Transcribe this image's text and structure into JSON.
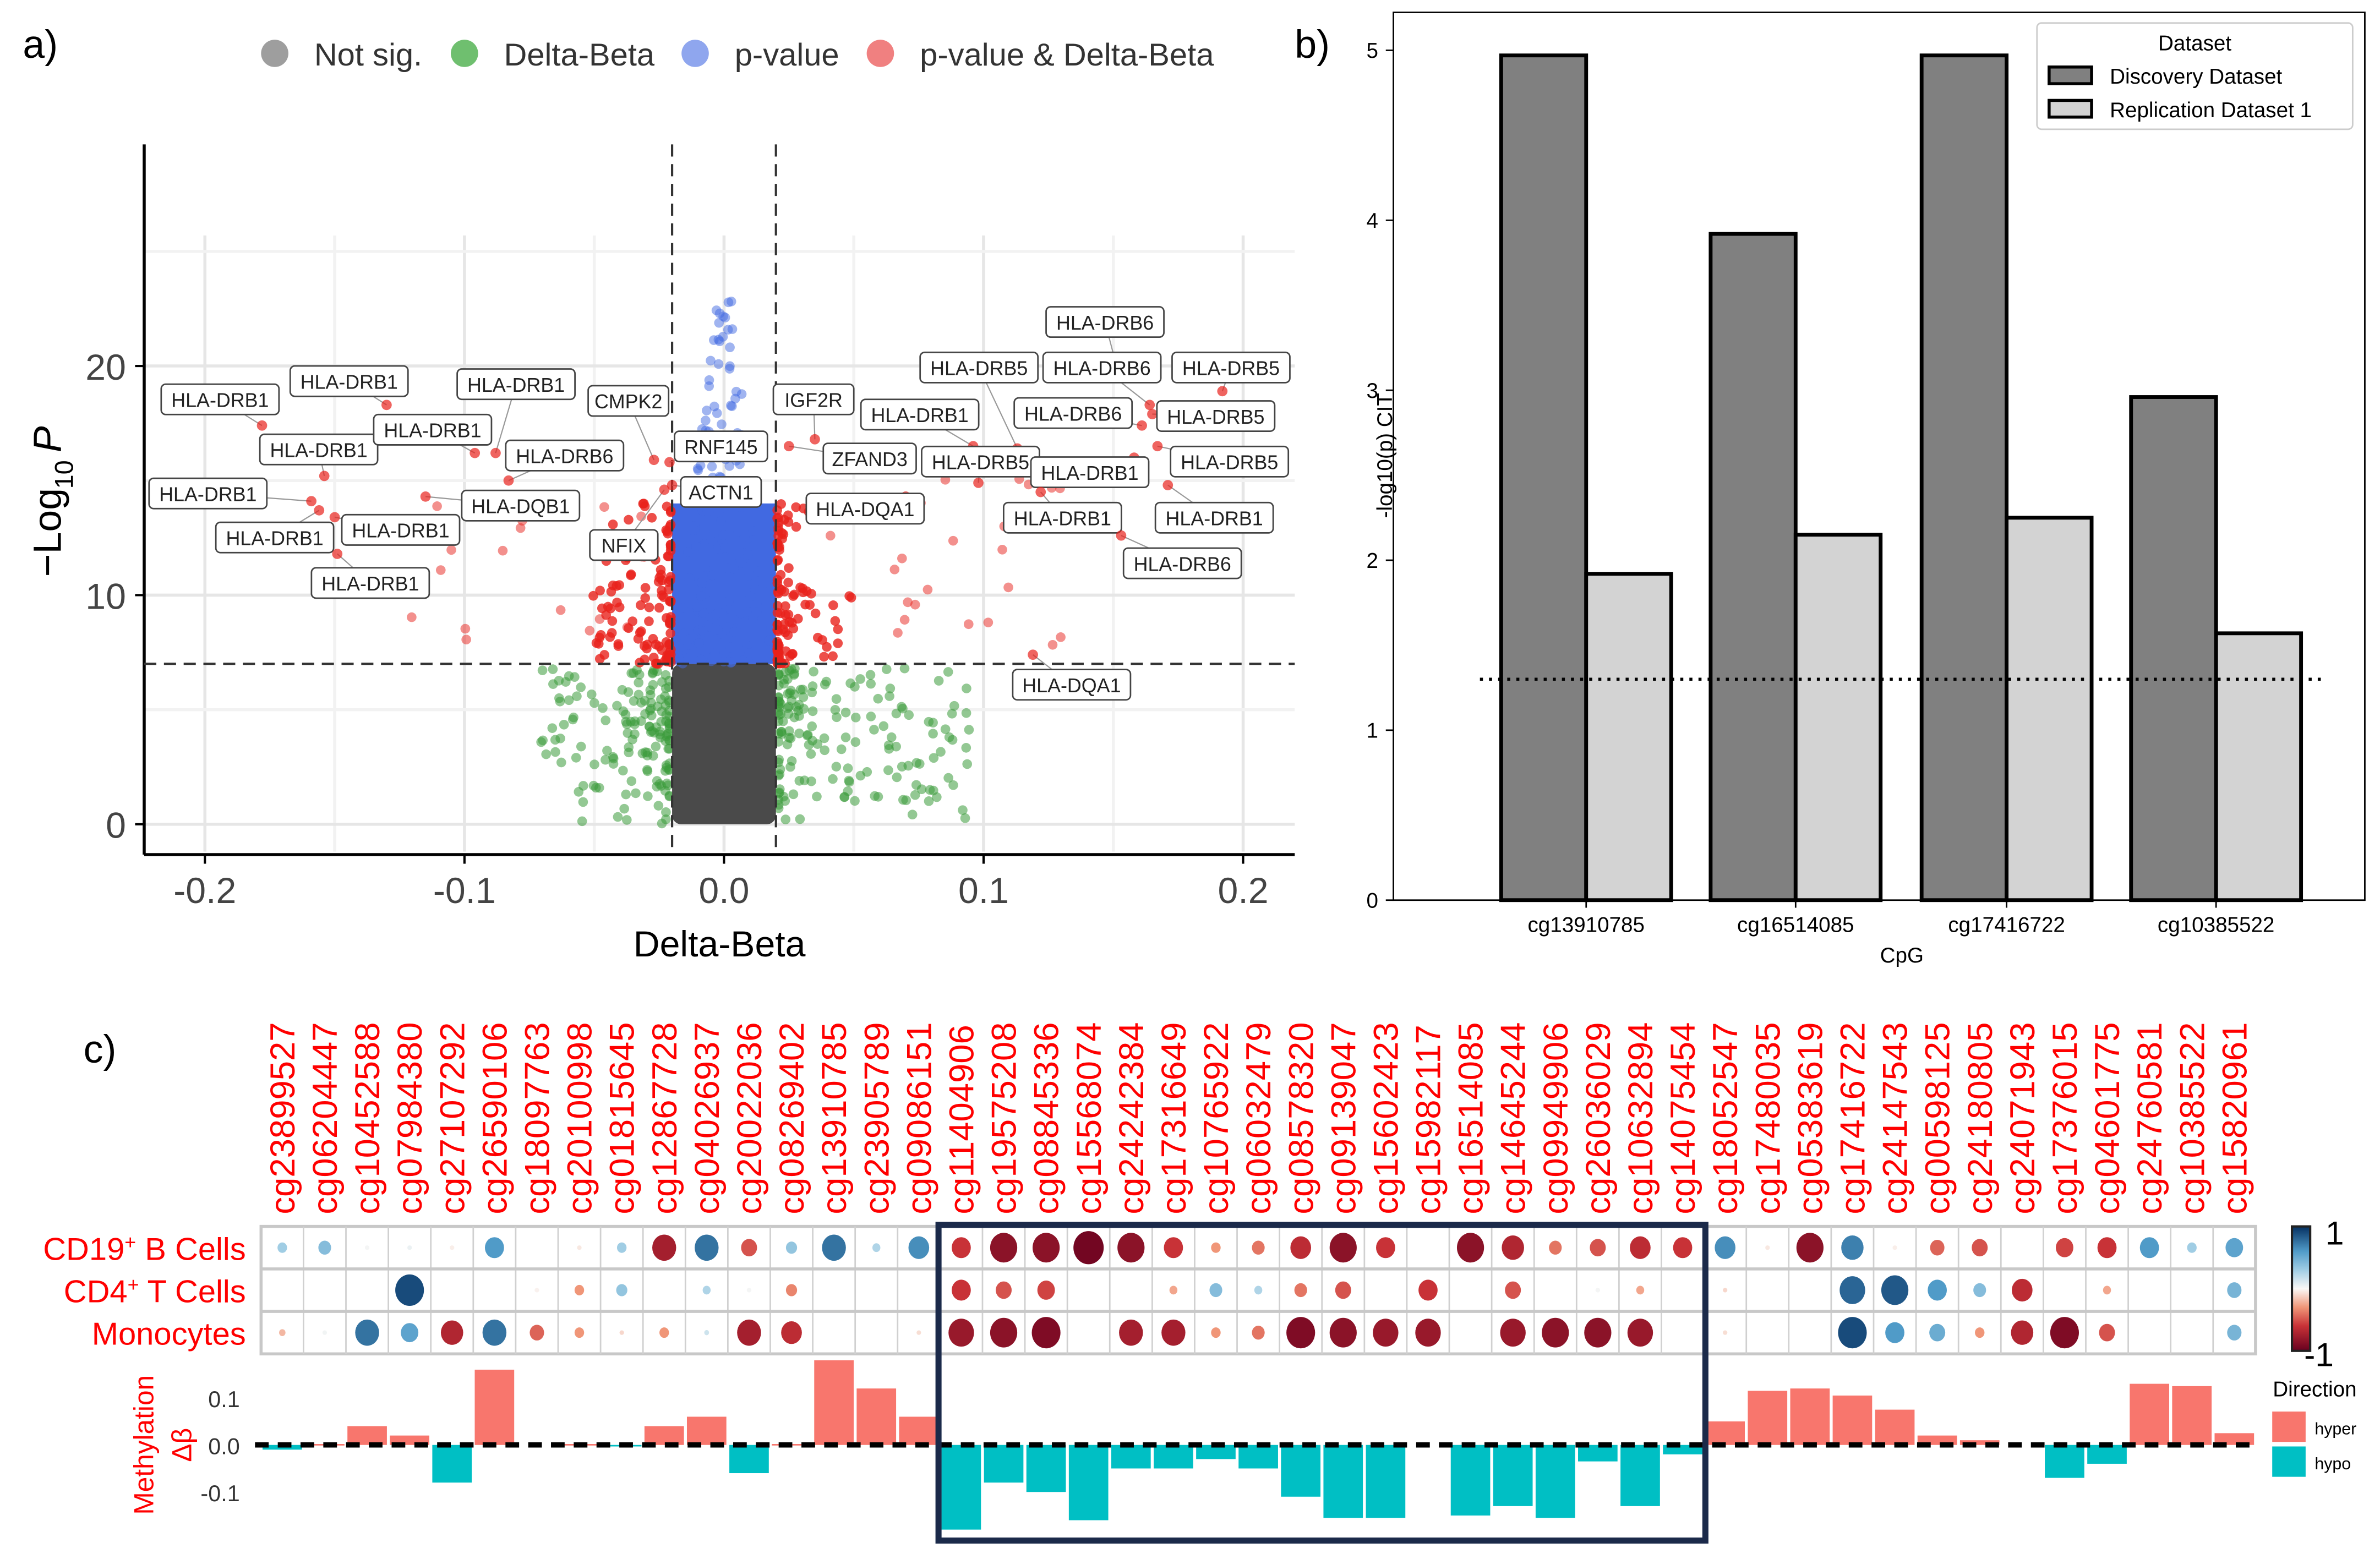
{
  "panel_labels": {
    "a": "a)",
    "b": "b)",
    "c": "c)"
  },
  "colors": {
    "not_sig": "#9e9e9e",
    "delta_beta": "#3a9a3a",
    "p_value": "#4169e1",
    "both": "#e8221c",
    "discovery": "#808080",
    "replication": "#d3d3d3",
    "hyper": "#f8766d",
    "hypo": "#00bfc4",
    "box": "#1b2a4a"
  },
  "chart_data": [
    {
      "type": "scatter",
      "name": "volcano",
      "xlabel": "Delta-Beta",
      "ylabel": "−Log",
      "ylabel_sub": "10",
      "ylabel_tail": "P",
      "xlim": [
        -0.22,
        0.22
      ],
      "ylim": [
        -1.3,
        29.5
      ],
      "xticks": [
        -0.2,
        -0.1,
        0.0,
        0.1,
        0.2
      ],
      "xtick_labels": [
        "-0.2",
        "-0.1",
        "0.0",
        "0.1",
        "0.2"
      ],
      "yticks": [
        0,
        10,
        20
      ],
      "ytick_labels": [
        "0",
        "10",
        "20"
      ],
      "thresholds": {
        "delta_beta": 0.02,
        "neg_log10_p": 7
      },
      "legend": [
        "Not sig.",
        "Delta-Beta",
        "p-value",
        "p-value & Delta-Beta"
      ],
      "legend_position": "top",
      "labeled_points": [
        {
          "gene": "HLA-DRB1",
          "x": -0.178,
          "y": 17.4
        },
        {
          "gene": "HLA-DRB1",
          "x": -0.13,
          "y": 18.3
        },
        {
          "gene": "HLA-DRB1",
          "x": -0.154,
          "y": 15.2
        },
        {
          "gene": "HLA-DRB1",
          "x": -0.096,
          "y": 16.2
        },
        {
          "gene": "HLA-DRB1",
          "x": -0.088,
          "y": 16.2
        },
        {
          "gene": "CMPK2",
          "x": -0.027,
          "y": 15.9
        },
        {
          "gene": "HLA-DRB6",
          "x": -0.083,
          "y": 15.0
        },
        {
          "gene": "HLA-DRB1",
          "x": -0.159,
          "y": 14.1
        },
        {
          "gene": "HLA-DQB1",
          "x": -0.115,
          "y": 14.3
        },
        {
          "gene": "HLA-DRB1",
          "x": -0.156,
          "y": 13.7
        },
        {
          "gene": "HLA-DRB1",
          "x": -0.15,
          "y": 13.4
        },
        {
          "gene": "HLA-DRB1",
          "x": -0.149,
          "y": 11.8
        },
        {
          "gene": "NFIX",
          "x": -0.023,
          "y": 14.6
        },
        {
          "gene": "RNF145",
          "x": -0.021,
          "y": 15.8
        },
        {
          "gene": "ACTN1",
          "x": -0.02,
          "y": 14.8
        },
        {
          "gene": "IGF2R",
          "x": 0.035,
          "y": 16.8
        },
        {
          "gene": "ZFAND3",
          "x": 0.025,
          "y": 16.5
        },
        {
          "gene": "HLA-DQA1",
          "x": 0.07,
          "y": 14.3
        },
        {
          "gene": "HLA-DRB1",
          "x": 0.096,
          "y": 16.5
        },
        {
          "gene": "HLA-DRB5",
          "x": 0.113,
          "y": 16.4
        },
        {
          "gene": "HLA-DRB6",
          "x": 0.151,
          "y": 20.1
        },
        {
          "gene": "HLA-DRB6",
          "x": 0.164,
          "y": 18.3
        },
        {
          "gene": "HLA-DRB5",
          "x": 0.192,
          "y": 18.9
        },
        {
          "gene": "HLA-DRB6",
          "x": 0.161,
          "y": 17.4
        },
        {
          "gene": "HLA-DRB5",
          "x": 0.165,
          "y": 17.9
        },
        {
          "gene": "HLA-DRB5",
          "x": 0.098,
          "y": 14.9
        },
        {
          "gene": "HLA-DRB1",
          "x": 0.158,
          "y": 16.0
        },
        {
          "gene": "HLA-DRB5",
          "x": 0.167,
          "y": 16.5
        },
        {
          "gene": "HLA-DRB1",
          "x": 0.122,
          "y": 14.5
        },
        {
          "gene": "HLA-DRB1",
          "x": 0.171,
          "y": 14.8
        },
        {
          "gene": "HLA-DRB6",
          "x": 0.153,
          "y": 12.6
        },
        {
          "gene": "HLA-DQA1",
          "x": 0.119,
          "y": 7.4
        }
      ]
    },
    {
      "type": "bar",
      "name": "cit",
      "categories": [
        "cg13910785",
        "cg16514085",
        "cg17416722",
        "cg10385522"
      ],
      "series": [
        {
          "name": "Discovery Dataset",
          "values": [
            4.97,
            3.92,
            4.97,
            2.96
          ]
        },
        {
          "name": "Replication Dataset 1",
          "values": [
            1.92,
            2.15,
            2.25,
            1.57
          ]
        }
      ],
      "legend_title": "Dataset",
      "legend_position": "top-right",
      "xlabel": "CpG",
      "ylabel": "-log10(p) CIT",
      "ylim": [
        0,
        5.2
      ],
      "yticks": [
        0,
        1,
        2,
        3,
        4,
        5
      ],
      "reference_line": 1.3
    },
    {
      "type": "heatmap",
      "name": "correlation",
      "cpgs": [
        "cg23899527",
        "cg06204447",
        "cg10452588",
        "cg07984380",
        "cg27107292",
        "cg26590106",
        "cg18097763",
        "cg20100998",
        "cg01815645",
        "cg12867728",
        "cg04026937",
        "cg20022036",
        "cg08269402",
        "cg13910785",
        "cg23905789",
        "cg09086151",
        "cg11404906",
        "cg19575208",
        "cg08845336",
        "cg15568074",
        "cg24242384",
        "cg17316649",
        "cg10765922",
        "cg06032479",
        "cg08578320",
        "cg09139047",
        "cg15602423",
        "cg15982117",
        "cg16514085",
        "cg14645244",
        "cg09949906",
        "cg26036029",
        "cg10632894",
        "cg14075454",
        "cg18052547",
        "cg17480035",
        "cg05383619",
        "cg17416722",
        "cg24147543",
        "cg00598125",
        "cg24180805",
        "cg24071943",
        "cg17376015",
        "cg04601775",
        "cg24760581",
        "cg10385522",
        "cg15820961"
      ],
      "rows": [
        {
          "label": "CD19",
          "sup": "+",
          "tail": " B Cells",
          "values": [
            0.3,
            0.4,
            0.02,
            0.05,
            -0.03,
            0.6,
            0,
            -0.05,
            0.3,
            -0.75,
            0.75,
            -0.5,
            0.35,
            0.75,
            0.25,
            0.65,
            -0.6,
            -0.85,
            -0.85,
            -0.95,
            -0.85,
            -0.6,
            -0.3,
            -0.4,
            -0.65,
            -0.85,
            -0.6,
            0,
            -0.85,
            -0.7,
            -0.4,
            -0.5,
            -0.65,
            -0.6,
            0.65,
            -0.05,
            -0.85,
            0.7,
            -0.03,
            -0.45,
            -0.5,
            0,
            -0.55,
            -0.6,
            0.6,
            0.3,
            0.55
          ]
        },
        {
          "label": "CD4",
          "sup": "+",
          "tail": " T Cells",
          "values": [
            0,
            0,
            0,
            0.9,
            0,
            0,
            -0.02,
            -0.3,
            0.35,
            0,
            0.25,
            0.02,
            -0.35,
            0,
            0,
            0,
            -0.6,
            -0.5,
            -0.55,
            0,
            0,
            -0.25,
            0.4,
            0.25,
            -0.4,
            -0.5,
            0,
            -0.6,
            0,
            -0.5,
            0,
            0.02,
            -0.25,
            0,
            -0.1,
            0,
            0,
            0.8,
            0.85,
            0.6,
            0.4,
            -0.65,
            0,
            -0.25,
            0,
            0,
            0.45
          ]
        },
        {
          "label": "Monocytes",
          "sup": "",
          "tail": "",
          "values": [
            -0.2,
            0.03,
            0.75,
            0.55,
            -0.7,
            0.75,
            -0.45,
            -0.3,
            -0.1,
            -0.3,
            0.15,
            -0.75,
            -0.65,
            0,
            0,
            -0.08,
            -0.8,
            -0.85,
            -0.9,
            0,
            -0.75,
            -0.75,
            -0.3,
            -0.4,
            -0.9,
            -0.85,
            -0.8,
            -0.8,
            0,
            -0.8,
            -0.85,
            -0.85,
            -0.8,
            0,
            -0.08,
            0,
            0,
            0.9,
            0.6,
            0.5,
            -0.3,
            -0.7,
            -0.9,
            -0.5,
            0,
            0,
            0.45
          ]
        }
      ],
      "delta_beta": [
        -0.01,
        0.002,
        0.04,
        0.02,
        -0.08,
        0.16,
        0,
        0.002,
        -0.002,
        0.04,
        0.06,
        -0.06,
        0.002,
        0.18,
        0.12,
        0.06,
        -0.18,
        -0.08,
        -0.1,
        -0.16,
        -0.05,
        -0.05,
        -0.03,
        -0.05,
        -0.11,
        -0.155,
        -0.155,
        0,
        -0.15,
        -0.13,
        -0.155,
        -0.035,
        -0.13,
        -0.02,
        0.05,
        0.115,
        0.12,
        0.105,
        0.075,
        0.02,
        0.01,
        0,
        -0.07,
        -0.04,
        0.13,
        0.125,
        0.025
      ],
      "highlight_range": [
        "cg11404906",
        "cg14075454"
      ],
      "ylabel_1": "Methylation",
      "ylabel_2": "Δβ",
      "yticks": [
        0.1,
        0.0,
        -0.1
      ],
      "ytick_labels": [
        "0.1",
        "0.0",
        "-0.1"
      ],
      "colorbar": {
        "max_label": "1",
        "min_label": "-1",
        "range": [
          -1,
          1
        ]
      },
      "direction_legend": {
        "title": "Direction",
        "items": [
          "hyper",
          "hypo"
        ]
      }
    }
  ]
}
